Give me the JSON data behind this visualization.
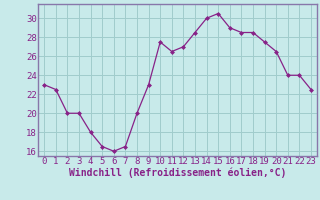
{
  "x": [
    0,
    1,
    2,
    3,
    4,
    5,
    6,
    7,
    8,
    9,
    10,
    11,
    12,
    13,
    14,
    15,
    16,
    17,
    18,
    19,
    20,
    21,
    22,
    23
  ],
  "y": [
    23,
    22.5,
    20,
    20,
    18,
    16.5,
    16,
    16.5,
    20,
    23,
    27.5,
    26.5,
    27,
    28.5,
    30,
    30.5,
    29,
    28.5,
    28.5,
    27.5,
    26.5,
    24,
    24,
    22.5
  ],
  "line_color": "#882288",
  "marker": "D",
  "marker_size": 2,
  "bg_color": "#c8eaea",
  "grid_color": "#a0cccc",
  "xlabel": "Windchill (Refroidissement éolien,°C)",
  "xlabel_fontsize": 7,
  "tick_fontsize": 6.5,
  "ylim": [
    15.5,
    31.5
  ],
  "yticks": [
    16,
    18,
    20,
    22,
    24,
    26,
    28,
    30
  ],
  "xticks": [
    0,
    1,
    2,
    3,
    4,
    5,
    6,
    7,
    8,
    9,
    10,
    11,
    12,
    13,
    14,
    15,
    16,
    17,
    18,
    19,
    20,
    21,
    22,
    23
  ],
  "spine_color": "#8877aa",
  "title_color": "#660066"
}
